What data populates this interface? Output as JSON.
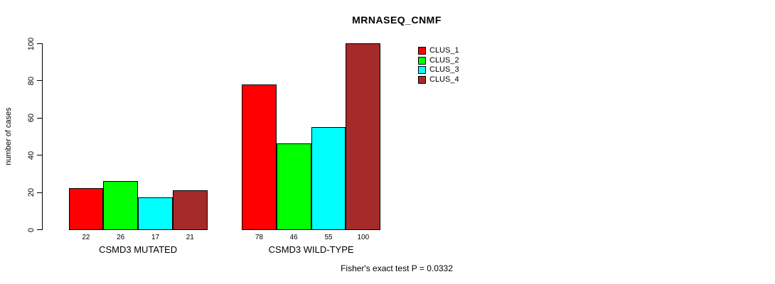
{
  "chart_data": {
    "type": "bar",
    "title": "MRNASEQ_CNMF",
    "xlabel": "",
    "ylabel": "number of cases",
    "ylim": [
      0,
      100
    ],
    "yticks": [
      0,
      20,
      40,
      60,
      80,
      100
    ],
    "categories": [
      "CSMD3 MUTATED",
      "CSMD3 WILD-TYPE"
    ],
    "series": [
      {
        "name": "CLUS_1",
        "color": "#ff0000",
        "values": [
          22,
          78
        ]
      },
      {
        "name": "CLUS_2",
        "color": "#00ff00",
        "values": [
          26,
          46
        ]
      },
      {
        "name": "CLUS_3",
        "color": "#00ffff",
        "values": [
          17,
          55
        ]
      },
      {
        "name": "CLUS_4",
        "color": "#a52a2a",
        "values": [
          21,
          100
        ]
      }
    ],
    "bar_value_labels": [
      [
        22,
        26,
        17,
        21
      ],
      [
        78,
        46,
        55,
        100
      ]
    ],
    "legend_position": "top-right",
    "grid": false,
    "annotation": "Fisher's exact test P = 0.0332"
  }
}
